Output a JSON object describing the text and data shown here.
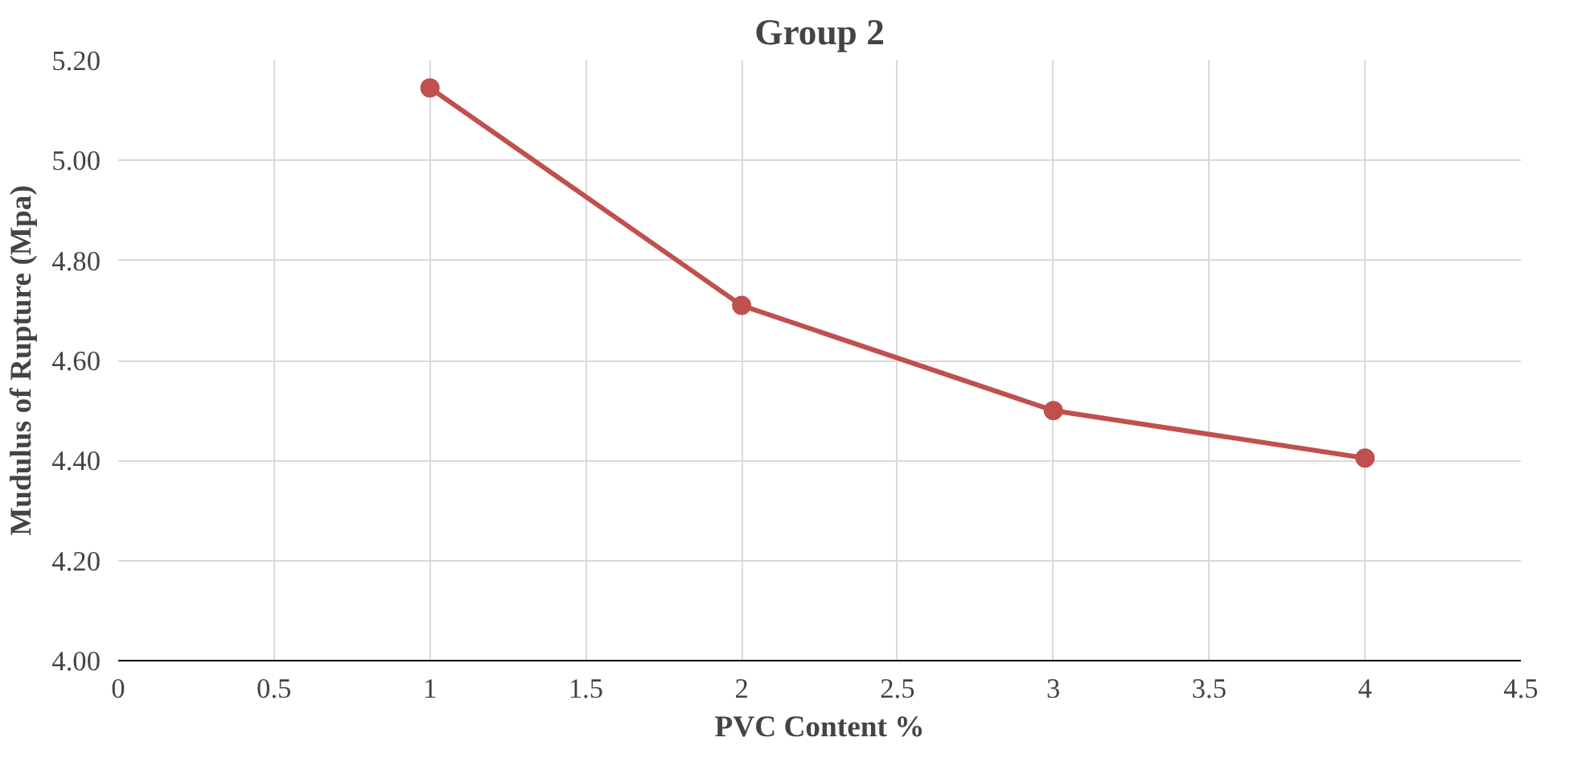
{
  "chart_data": {
    "type": "line",
    "title": "Group 2",
    "xlabel": "PVC Content %",
    "ylabel": "Mudulus of Rupture (Mpa)",
    "x": [
      1,
      2,
      3,
      4
    ],
    "series": [
      {
        "color": "#c0504d",
        "values": [
          5.145,
          4.71,
          4.5,
          4.405
        ]
      }
    ],
    "xlim": [
      0,
      4.5
    ],
    "xticks": [
      0,
      0.5,
      1,
      1.5,
      2,
      2.5,
      3,
      3.5,
      4,
      4.5
    ],
    "ylim": [
      4,
      5.2
    ],
    "yticks": [
      {
        "value": 4,
        "label": "4.00"
      },
      {
        "value": 4.2,
        "label": "4.20"
      },
      {
        "value": 4.4,
        "label": "4.40"
      },
      {
        "value": 4.6,
        "label": "4.60"
      },
      {
        "value": 4.8,
        "label": "4.80"
      },
      {
        "value": 5.0,
        "label": "5.00"
      },
      {
        "value": 5.2,
        "label": "5.20"
      }
    ],
    "grid": true,
    "marker": "circle",
    "line_style": "solid"
  }
}
